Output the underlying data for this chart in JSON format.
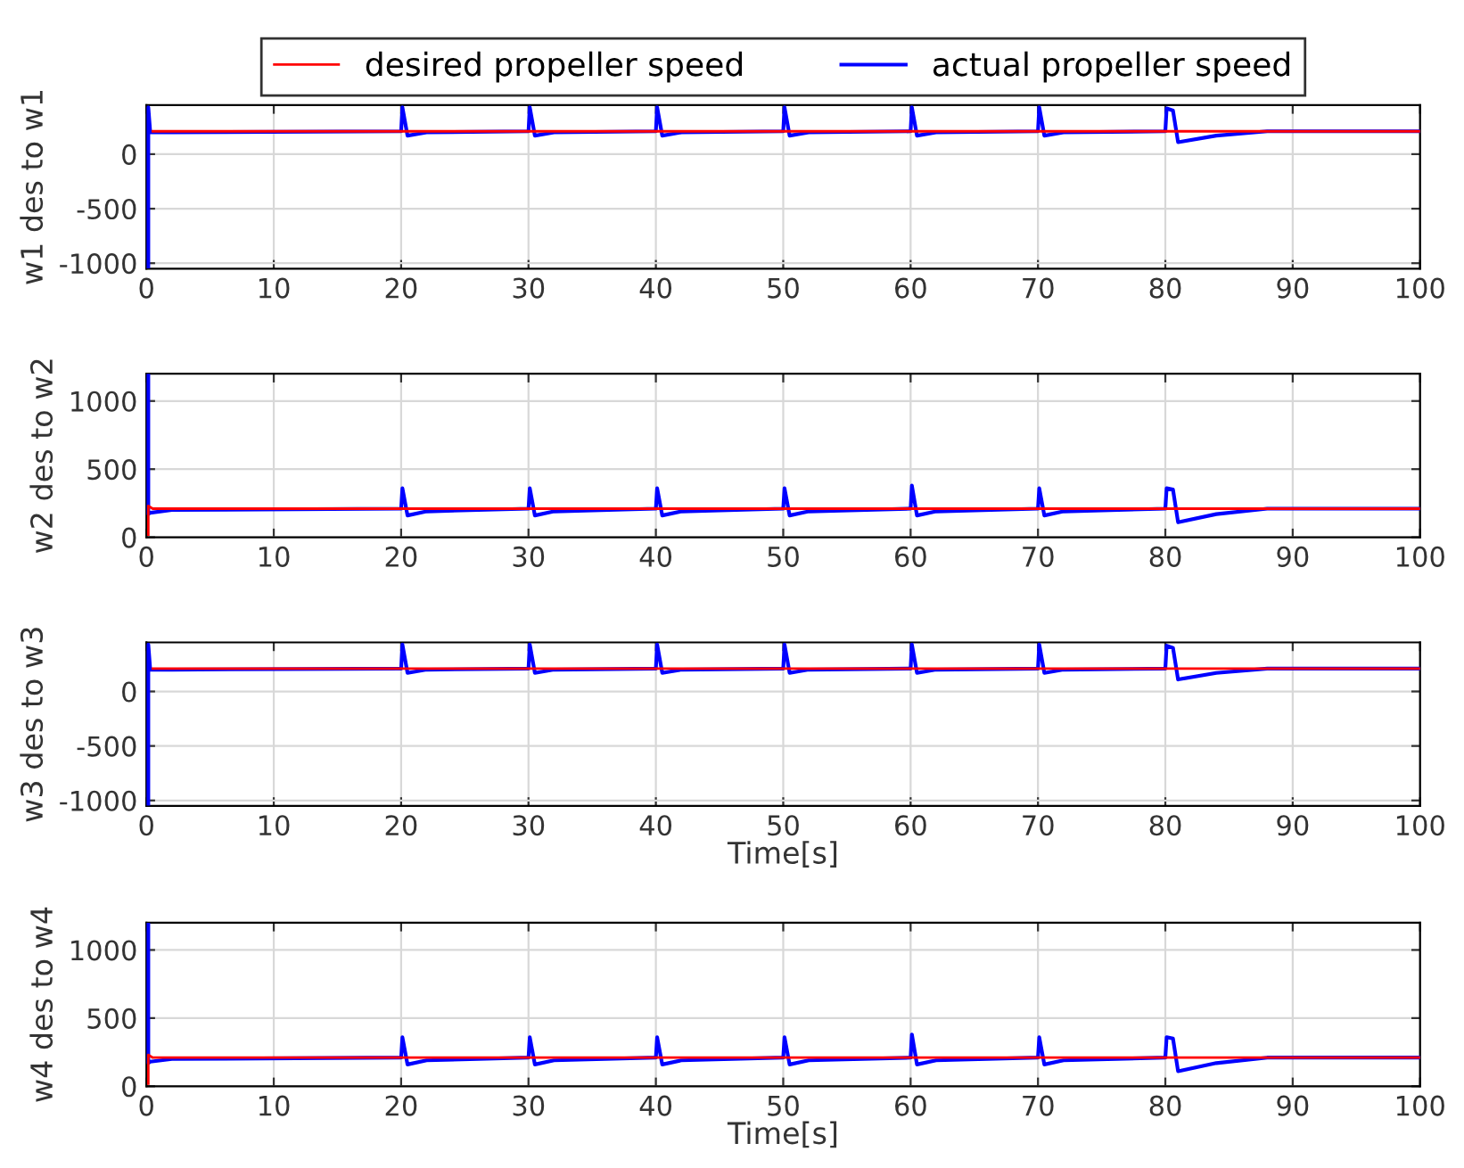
{
  "chart_data": [
    {
      "type": "line",
      "ylabel": "w1 des to w1",
      "xlim": [
        0,
        100
      ],
      "xticks": [
        0,
        10,
        20,
        30,
        40,
        50,
        60,
        70,
        80,
        90,
        100
      ],
      "ylim": [
        -1050,
        450
      ],
      "yticks": [
        -1000,
        -500,
        0
      ],
      "grid": true,
      "legend": "top",
      "series": [
        {
          "name": "desired propeller speed",
          "color": "#ff0000",
          "x": [
            0.5,
            100
          ],
          "values": [
            210,
            210
          ]
        },
        {
          "name": "actual propeller speed",
          "color": "#0000ff",
          "x": [
            0.15,
            0.15,
            0.3,
            2,
            20,
            20.1,
            20.5,
            22,
            30,
            30.1,
            30.5,
            32,
            40,
            40.1,
            40.5,
            42,
            50,
            50.1,
            50.5,
            52,
            60,
            60.1,
            60.5,
            62,
            70,
            70.1,
            70.5,
            72,
            80,
            80.1,
            80.6,
            81,
            84,
            88,
            100
          ],
          "values": [
            -1030,
            430,
            200,
            200,
            210,
            430,
            170,
            200,
            210,
            430,
            170,
            200,
            210,
            430,
            170,
            200,
            210,
            430,
            170,
            200,
            210,
            430,
            170,
            200,
            210,
            430,
            170,
            200,
            210,
            420,
            400,
            110,
            170,
            210,
            210
          ]
        }
      ]
    },
    {
      "type": "line",
      "ylabel": "w2 des to w2",
      "xlim": [
        0,
        100
      ],
      "xticks": [
        0,
        10,
        20,
        30,
        40,
        50,
        60,
        70,
        80,
        90,
        100
      ],
      "ylim": [
        0,
        1200
      ],
      "yticks": [
        0,
        500,
        1000
      ],
      "grid": true,
      "series": [
        {
          "color": "#ff0000",
          "x": [
            0.15,
            0.15,
            0.5,
            100
          ],
          "values": [
            20,
            230,
            210,
            210
          ]
        },
        {
          "color": "#0000ff",
          "x": [
            0.15,
            0.15,
            0.3,
            2,
            20,
            20.1,
            20.5,
            22,
            30,
            30.1,
            30.5,
            32,
            40,
            40.1,
            40.5,
            42,
            50,
            50.1,
            50.5,
            52,
            60,
            60.1,
            60.5,
            62,
            70,
            70.1,
            70.5,
            72,
            80,
            80.1,
            80.6,
            81,
            84,
            88,
            100
          ],
          "values": [
            1200,
            170,
            180,
            200,
            210,
            360,
            160,
            190,
            210,
            360,
            160,
            190,
            210,
            360,
            160,
            190,
            210,
            360,
            160,
            190,
            210,
            380,
            160,
            190,
            210,
            360,
            160,
            190,
            210,
            360,
            350,
            110,
            170,
            210,
            210
          ]
        }
      ]
    },
    {
      "type": "line",
      "ylabel": "w3 des to w3",
      "xlabel": "Time[s]",
      "xlim": [
        0,
        100
      ],
      "xticks": [
        0,
        10,
        20,
        30,
        40,
        50,
        60,
        70,
        80,
        90,
        100
      ],
      "ylim": [
        -1050,
        450
      ],
      "yticks": [
        -1000,
        -500,
        0
      ],
      "grid": true,
      "series": [
        {
          "color": "#ff0000",
          "x": [
            0.5,
            100
          ],
          "values": [
            210,
            210
          ]
        },
        {
          "color": "#0000ff",
          "x": [
            0.15,
            0.15,
            0.3,
            2,
            20,
            20.1,
            20.5,
            22,
            30,
            30.1,
            30.5,
            32,
            40,
            40.1,
            40.5,
            42,
            50,
            50.1,
            50.5,
            52,
            60,
            60.1,
            60.5,
            62,
            70,
            70.1,
            70.5,
            72,
            80,
            80.1,
            80.6,
            81,
            84,
            88,
            100
          ],
          "values": [
            -1030,
            430,
            200,
            200,
            210,
            430,
            170,
            200,
            210,
            430,
            170,
            200,
            210,
            430,
            170,
            200,
            210,
            430,
            170,
            200,
            210,
            430,
            170,
            200,
            210,
            430,
            170,
            200,
            210,
            420,
            400,
            110,
            170,
            210,
            210
          ]
        }
      ]
    },
    {
      "type": "line",
      "ylabel": "w4 des to w4",
      "xlabel": "Time[s]",
      "xlim": [
        0,
        100
      ],
      "xticks": [
        0,
        10,
        20,
        30,
        40,
        50,
        60,
        70,
        80,
        90,
        100
      ],
      "ylim": [
        0,
        1200
      ],
      "yticks": [
        0,
        500,
        1000
      ],
      "grid": true,
      "series": [
        {
          "color": "#ff0000",
          "x": [
            0.15,
            0.15,
            0.5,
            100
          ],
          "values": [
            20,
            230,
            210,
            210
          ]
        },
        {
          "color": "#0000ff",
          "x": [
            0.15,
            0.15,
            0.3,
            2,
            20,
            20.1,
            20.5,
            22,
            30,
            30.1,
            30.5,
            32,
            40,
            40.1,
            40.5,
            42,
            50,
            50.1,
            50.5,
            52,
            60,
            60.1,
            60.5,
            62,
            70,
            70.1,
            70.5,
            72,
            80,
            80.1,
            80.6,
            81,
            84,
            88,
            100
          ],
          "values": [
            1200,
            170,
            180,
            200,
            210,
            360,
            160,
            190,
            210,
            360,
            160,
            190,
            210,
            360,
            160,
            190,
            210,
            360,
            160,
            190,
            210,
            380,
            160,
            190,
            210,
            360,
            160,
            190,
            210,
            360,
            350,
            110,
            170,
            210,
            210
          ]
        }
      ]
    }
  ]
}
